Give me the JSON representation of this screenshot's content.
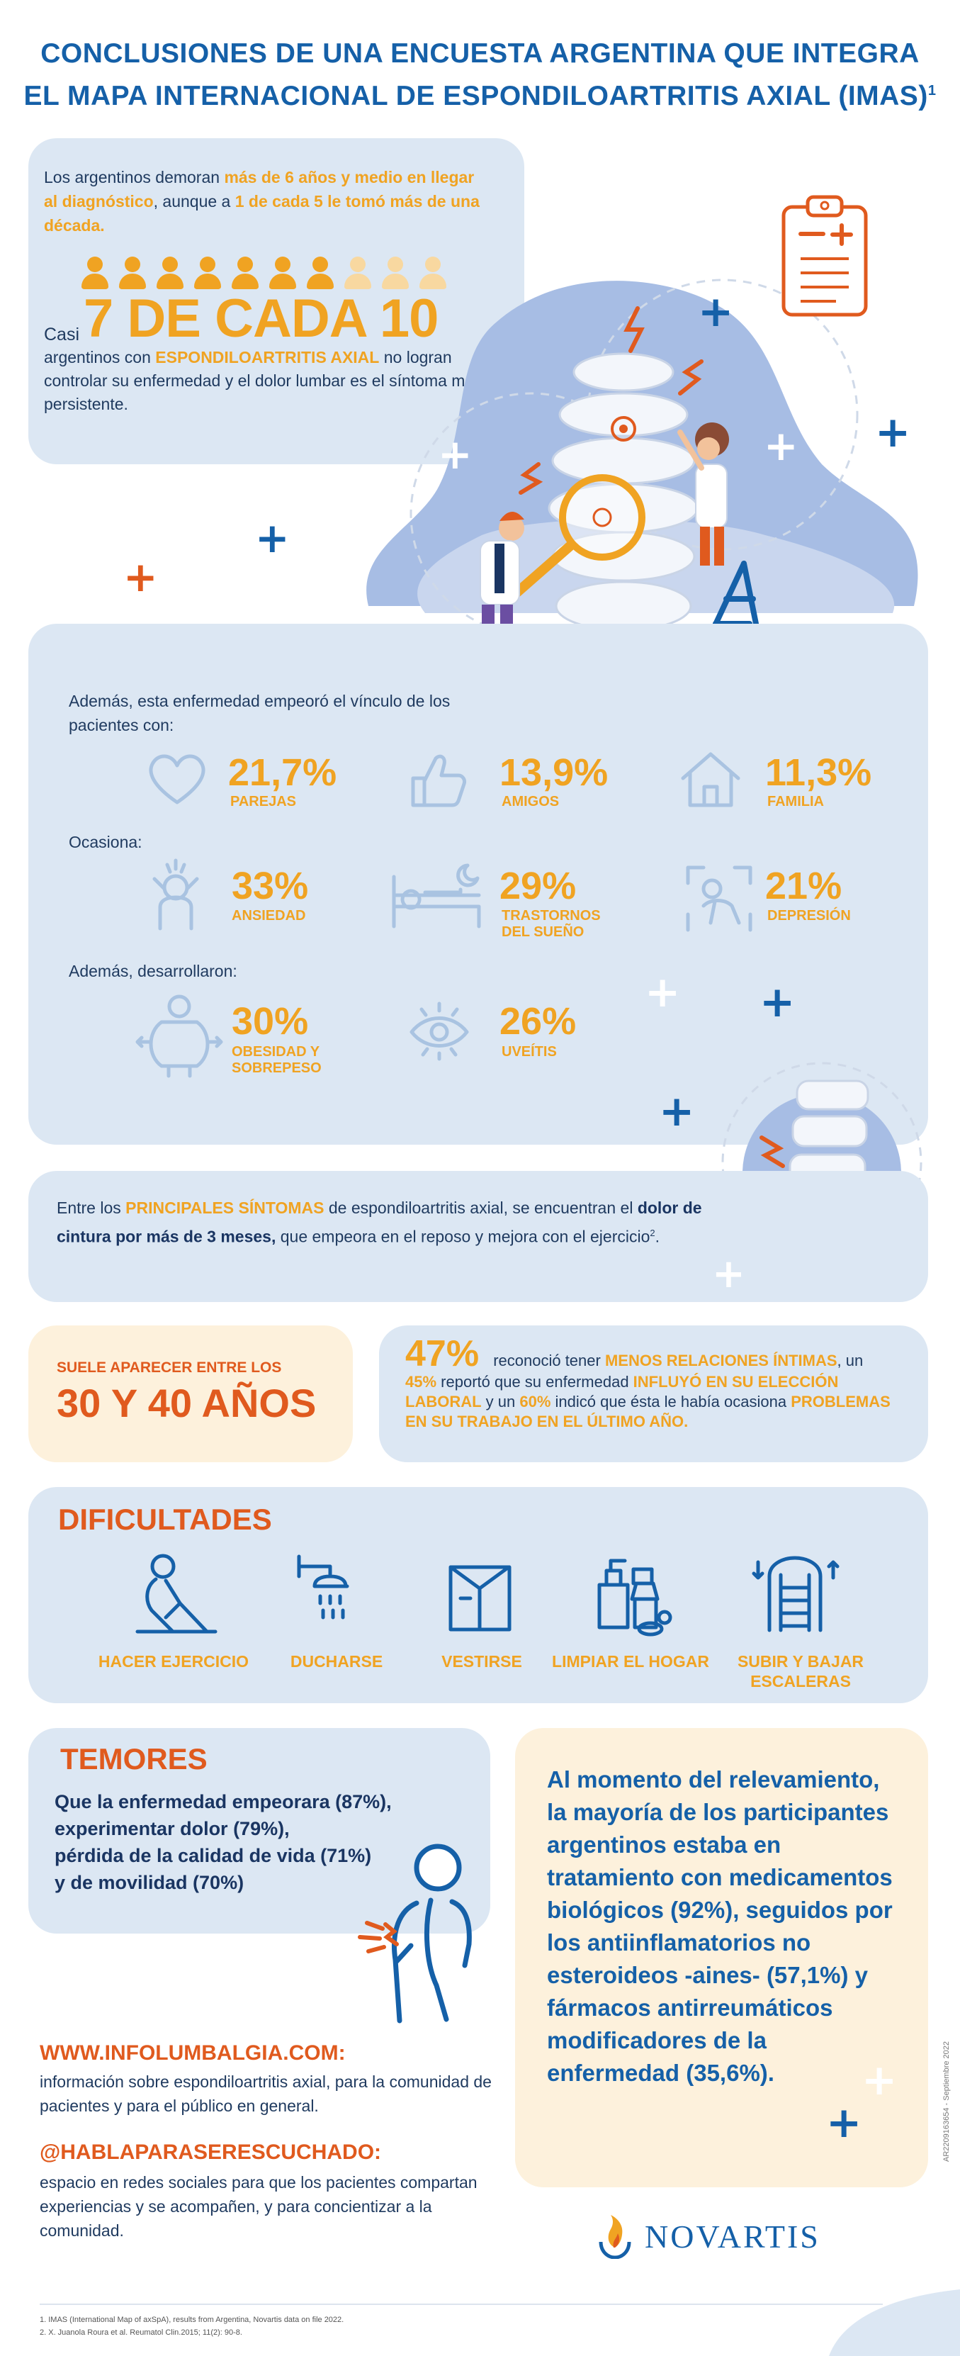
{
  "title": {
    "line1": "CONCLUSIONES DE UNA ENCUESTA ARGENTINA QUE INTEGRA",
    "line2": "EL MAPA INTERNACIONAL DE ESPONDILOARTRITIS AXIAL (IMAS)",
    "sup": "1"
  },
  "intro": {
    "t1": "Los argentinos demoran ",
    "t2": "más de 6 años y medio en llegar al diagnóstico",
    "t3": ", aunque a ",
    "t4": "1 de cada 5 le tomó más de una década.",
    "casi": "Casi",
    "big": "7 DE CADA 10",
    "p1": "argentinos con ",
    "p2": "ESPONDILOARTRITIS AXIAL",
    "p3": " no logran controlar su enfermedad y el dolor lumbar es el síntoma más persistente.",
    "people_highlighted": 7,
    "people_total": 10
  },
  "stats": {
    "vinculo_label": "Además, esta enfermedad empeoró el vínculo de los pacientes con:",
    "vinculo": [
      {
        "value": "21,7%",
        "label": "PAREJAS",
        "icon": "heart-icon"
      },
      {
        "value": "13,9%",
        "label": "AMIGOS",
        "icon": "thumbs-up-icon"
      },
      {
        "value": "11,3%",
        "label": "FAMILIA",
        "icon": "house-icon"
      }
    ],
    "ocasiona_label": "Ocasiona:",
    "ocasiona": [
      {
        "value": "33%",
        "label": "ANSIEDAD",
        "icon": "anxiety-icon"
      },
      {
        "value": "29%",
        "label": "TRASTORNOS DEL SUEÑO",
        "icon": "bed-icon"
      },
      {
        "value": "21%",
        "label": "DEPRESIÓN",
        "icon": "depression-icon"
      }
    ],
    "desarrollaron_label": "Además, desarrollaron:",
    "desarrollaron": [
      {
        "value": "30%",
        "label": "OBESIDAD Y SOBREPESO",
        "icon": "body-weight-icon"
      },
      {
        "value": "26%",
        "label": "UVEÍTIS",
        "icon": "eye-icon"
      }
    ]
  },
  "symptoms": {
    "t1": "Entre los ",
    "t2": "PRINCIPALES SÍNTOMAS",
    "t3": " de espondiloartritis axial, se encuentran el ",
    "t4": "dolor de cintura por más de 3 meses,",
    "t5": " que empeora en el reposo y mejora con el ejercicio",
    "sup": "2",
    "t6": "."
  },
  "age": {
    "label": "SUELE APARECER ENTRE LOS",
    "value": "30 Y 40 AÑOS"
  },
  "work": {
    "pct": "47%",
    "t1": " reconoció tener ",
    "t2": "MENOS RELACIONES ÍNTIMAS",
    "t3": ", un ",
    "t4": "45%",
    "t5": " reportó que su enfermedad ",
    "t6": "INFLUYÓ EN SU ELECCIÓN LABORAL",
    "t7": " y un ",
    "t8": "60%",
    "t9": " indicó que ésta le había ocasiona ",
    "t10": "PROBLEMAS EN SU TRABAJO EN EL ÚLTIMO AÑO."
  },
  "difficulties": {
    "heading": "DIFICULTADES",
    "items": [
      {
        "label": "HACER EJERCICIO",
        "icon": "exercise-icon"
      },
      {
        "label": "DUCHARSE",
        "icon": "shower-icon"
      },
      {
        "label": "VESTIRSE",
        "icon": "shirt-icon"
      },
      {
        "label": "LIMPIAR EL HOGAR",
        "icon": "cleaning-icon"
      },
      {
        "label": "SUBIR Y BAJAR ESCALERAS",
        "icon": "escalator-icon"
      }
    ]
  },
  "fears": {
    "heading": "TEMORES",
    "lines": [
      "Que la enfermedad empeorara (87%),",
      "experimentar dolor (79%),",
      "pérdida de la calidad de vida (71%)",
      "y de movilidad (70%)"
    ]
  },
  "treatment": {
    "text": "Al momento del relevamiento, la mayoría de los participantes argentinos estaba en tratamiento con medicamentos biológicos (92%), seguidos por los antiinflamatorios no esteroideos -aines- (57,1%) y fármacos antirreumáticos modificadores de la enfermedad (35,6%)."
  },
  "links": {
    "web_title": "WWW.INFOLUMBALGIA.COM:",
    "web_desc": "información sobre espondiloartritis axial, para la comunidad de pacientes y para el público en general.",
    "social_title": "@HABLAPARASERESCUCHADO:",
    "social_desc": "espacio en redes sociales para que los pacientes compartan experiencias y se acompañen, y para concientizar a la comunidad."
  },
  "brand": {
    "name": "NOVARTIS"
  },
  "code": "AR2209163654 - Septiembre 2022",
  "footnotes": [
    "1. IMAS (International Map of axSpA), results from Argentina, Novartis data on file 2022.",
    "2. X. Juanola Roura et al. Reumatol Clin.2015; 11(2): 90-8."
  ],
  "colors": {
    "blue": "#1560a8",
    "orange": "#f0a322",
    "dark_orange": "#e05a1e",
    "panel": "#dce7f3",
    "cream": "#fdf1dc"
  }
}
